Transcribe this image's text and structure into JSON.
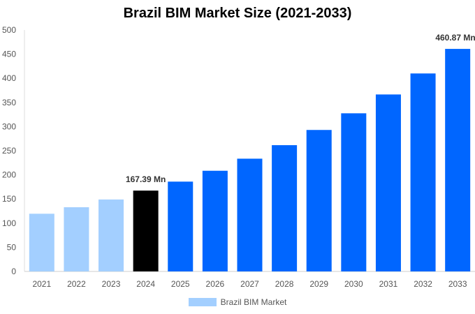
{
  "chart_data": {
    "type": "bar",
    "title": "Brazil BIM Market Size (2021-2033)",
    "categories": [
      "2021",
      "2022",
      "2023",
      "2024",
      "2025",
      "2026",
      "2027",
      "2028",
      "2029",
      "2030",
      "2031",
      "2032",
      "2033"
    ],
    "series": [
      {
        "name": "Brazil BIM Market",
        "values": [
          119.5,
          133,
          149,
          167.39,
          186,
          208.5,
          233.5,
          261.5,
          293,
          327.5,
          366.5,
          410,
          460.87
        ]
      }
    ],
    "data_labels": {
      "3": "167.39 Mn",
      "12": "460.87 Mn"
    },
    "bar_colors": [
      "#a3cfff",
      "#a3cfff",
      "#a3cfff",
      "#000000",
      "#0066ff",
      "#0066ff",
      "#0066ff",
      "#0066ff",
      "#0066ff",
      "#0066ff",
      "#0066ff",
      "#0066ff",
      "#0066ff"
    ],
    "legend_color": "#a3cfff",
    "ylim": [
      0,
      500
    ],
    "yticks": [
      0,
      50,
      100,
      150,
      200,
      250,
      300,
      350,
      400,
      450,
      500
    ],
    "xlabel": "",
    "ylabel": "",
    "grid": false,
    "legend_position": "bottom"
  }
}
